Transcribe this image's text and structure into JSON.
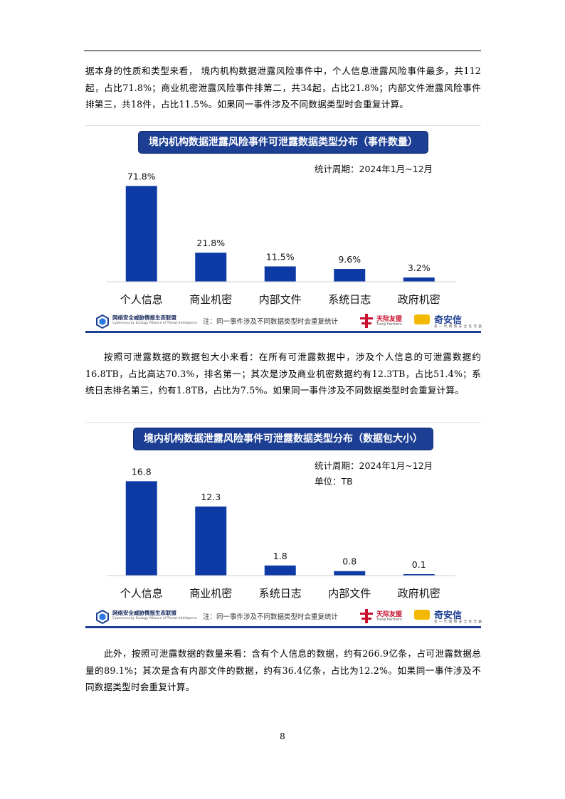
{
  "paragraphs": {
    "p1": "据本身的性质和类型来看， 境内机构数据泄露风险事件中，个人信息泄露风险事件最多，共112起，占比71.8%；商业机密泄露风险事件排第二，共34起，占比21.8%；内部文件泄露风险事件排第三，共18件，占比11.5%。如果同一事件涉及不同数据类型时会重复计算。",
    "p2": "按照可泄露数据的数据包大小来看：在所有可泄露数据中，涉及个人信息的可泄露数据约16.8TB，占比高达70.3%，排名第一；其次是涉及商业机密数据约有12.3TB，占比51.4%；系统日志排名第三，约有1.8TB，占比为7.5%。如果同一事件涉及不同数据类型时会重复计算。",
    "p3": "此外，按照可泄露数据的数量来看：含有个人信息的数据，约有266.9亿条，占可泄露数据总量的89.1%；其次是含有内部文件的数据，约有36.4亿条，占比为12.2%。如果同一事件涉及不同数据类型时会重复计算。"
  },
  "chart_data": [
    {
      "type": "bar",
      "title": "境内机构数据泄露风险事件可泄露数据类型分布（事件数量）",
      "period": "统计周期：2024年1月~12月",
      "unit": "",
      "categories": [
        "个人信息",
        "商业机密",
        "内部文件",
        "系统日志",
        "政府机密"
      ],
      "values": [
        71.8,
        21.8,
        11.5,
        9.6,
        3.2
      ],
      "value_labels": [
        "71.8%",
        "21.8%",
        "11.5%",
        "9.6%",
        "3.2%"
      ],
      "ylim": [
        0,
        80
      ],
      "note": "注：同一事件涉及不同数据类型时会重复统计",
      "bar_color": "#0e3aa6",
      "grid": false
    },
    {
      "type": "bar",
      "title": "境内机构数据泄露风险事件可泄露数据类型分布（数据包大小）",
      "period": "统计周期：2024年1月~12月",
      "unit": "单位：TB",
      "categories": [
        "个人信息",
        "商业机密",
        "系统日志",
        "内部文件",
        "政府机密"
      ],
      "values": [
        16.8,
        12.3,
        1.8,
        0.8,
        0.1
      ],
      "value_labels": [
        "16.8",
        "12.3",
        "1.8",
        "0.8",
        "0.1"
      ],
      "ylim": [
        0,
        19
      ],
      "note": "注：同一事件涉及不同数据类型时会重复统计",
      "bar_color": "#0e3aa6",
      "grid": false
    }
  ],
  "logos": {
    "alliance_name": "网络安全威胁情报生态联盟",
    "alliance_sub": "Cybersecurity Ecology Alliance of Threat Intelligence",
    "tianji_name": "天际友盟",
    "tianji_sub": "Tianji Partners",
    "qax_name": "奇安信",
    "qax_sub": "第 一 代 网 络 安 全 巨 无 霸"
  },
  "page_number": "8"
}
